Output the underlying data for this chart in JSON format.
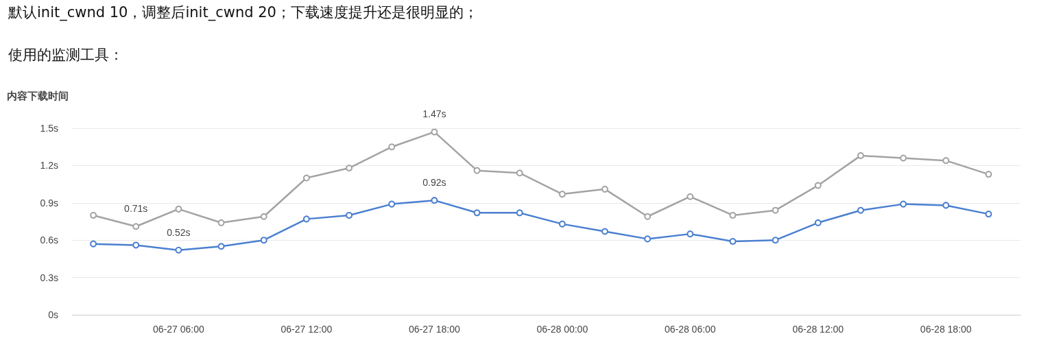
{
  "chart_data": {
    "type": "line",
    "annotations": [
      "默认init_cwnd 10，调整后init_cwnd 20；下载速度提升还是很明显的；",
      "使用的监测工具："
    ],
    "ylabel": "内容下载时间",
    "x": [
      "--06-27T02:00",
      "--06-27T04:00",
      "--06-27T06:00",
      "--06-27T08:00",
      "--06-27T10:00",
      "--06-27T12:00",
      "--06-27T14:00",
      "--06-27T16:00",
      "--06-27T18:00",
      "--06-27T20:00",
      "--06-27T22:00",
      "--06-28T00:00",
      "--06-28T02:00",
      "--06-28T04:00",
      "--06-28T06:00",
      "--06-28T08:00",
      "--06-28T10:00",
      "--06-28T12:00",
      "--06-28T14:00",
      "--06-28T16:00",
      "--06-28T18:00",
      "--06-28T20:00"
    ],
    "series": [
      {
        "color": "#a3a3a3",
        "values": [
          0.8,
          0.71,
          0.85,
          0.74,
          0.79,
          1.1,
          1.18,
          1.35,
          1.47,
          1.16,
          1.14,
          0.97,
          1.01,
          0.79,
          0.95,
          0.8,
          0.84,
          1.04,
          1.28,
          1.26,
          1.24,
          1.13
        ],
        "value_labels": [
          null,
          "0.71s",
          null,
          null,
          null,
          null,
          null,
          null,
          "1.47s",
          null,
          null,
          null,
          null,
          null,
          null,
          null,
          null,
          null,
          null,
          null,
          null,
          null
        ]
      },
      {
        "color": "#4a7fd0",
        "values": [
          0.57,
          0.56,
          0.52,
          0.55,
          0.6,
          0.77,
          0.8,
          0.89,
          0.92,
          0.82,
          0.82,
          0.73,
          0.67,
          0.61,
          0.65,
          0.59,
          0.6,
          0.74,
          0.84,
          0.89,
          0.88,
          0.81
        ],
        "value_labels": [
          null,
          null,
          "0.52s",
          null,
          null,
          null,
          null,
          null,
          "0.92s",
          null,
          null,
          null,
          null,
          null,
          null,
          null,
          null,
          null,
          null,
          null,
          null,
          null
        ]
      }
    ],
    "xlim": [
      "--06-27T01:00",
      "--06-28T21:30"
    ],
    "xticks": [
      {
        "value": "--06-27T06:00",
        "label": "06-27 06:00"
      },
      {
        "value": "--06-27T12:00",
        "label": "06-27 12:00"
      },
      {
        "value": "--06-27T18:00",
        "label": "06-27 18:00"
      },
      {
        "value": "--06-28T00:00",
        "label": "06-28 00:00"
      },
      {
        "value": "--06-28T06:00",
        "label": "06-28 06:00"
      },
      {
        "value": "--06-28T12:00",
        "label": "06-28 12:00"
      },
      {
        "value": "--06-28T18:00",
        "label": "06-28 18:00"
      }
    ],
    "ylim": [
      0,
      1.5
    ],
    "yticks": [
      {
        "value": 0,
        "label": "0s"
      },
      {
        "value": 0.3,
        "label": "0.3s"
      },
      {
        "value": 0.6,
        "label": "0.6s"
      },
      {
        "value": 0.9,
        "label": "0.9s"
      },
      {
        "value": 1.2,
        "label": "1.2s"
      },
      {
        "value": 1.5,
        "label": "1.5s"
      }
    ],
    "grid": "y",
    "marker": "circle",
    "line_style": "solid"
  }
}
